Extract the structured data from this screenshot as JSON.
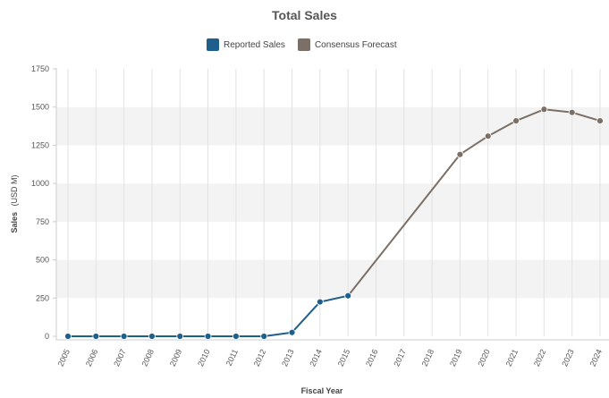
{
  "chart_data": {
    "type": "line",
    "title": "Total Sales",
    "xlabel": "Fiscal Year",
    "ylabel_main": "Sales",
    "ylabel_unit": "(USD M)",
    "x": [
      "2005",
      "2006",
      "2007",
      "2008",
      "2009",
      "2010",
      "2011",
      "2012",
      "2013",
      "2014",
      "2015",
      "2016",
      "2017",
      "2018",
      "2019",
      "2020",
      "2021",
      "2022",
      "2023",
      "2024"
    ],
    "ylim": [
      0,
      1750
    ],
    "yticks": [
      "0",
      "250",
      "500",
      "750",
      "1000",
      "1250",
      "1500",
      "1750"
    ],
    "grid": true,
    "legend_position": "top-center",
    "series": [
      {
        "name": "Reported Sales",
        "color": "#1f5f8b",
        "points": [
          {
            "x": "2005",
            "y": 0
          },
          {
            "x": "2006",
            "y": 0
          },
          {
            "x": "2007",
            "y": 0
          },
          {
            "x": "2008",
            "y": 0
          },
          {
            "x": "2009",
            "y": 0
          },
          {
            "x": "2010",
            "y": 0
          },
          {
            "x": "2011",
            "y": 0
          },
          {
            "x": "2012",
            "y": 0
          },
          {
            "x": "2013",
            "y": 25
          },
          {
            "x": "2014",
            "y": 225
          },
          {
            "x": "2015",
            "y": 265
          }
        ]
      },
      {
        "name": "Consensus Forecast",
        "color": "#7b6f66",
        "points": [
          {
            "x": "2015",
            "y": 265
          },
          {
            "x": "2019",
            "y": 1190
          },
          {
            "x": "2020",
            "y": 1310
          },
          {
            "x": "2021",
            "y": 1410
          },
          {
            "x": "2022",
            "y": 1485
          },
          {
            "x": "2023",
            "y": 1465
          },
          {
            "x": "2024",
            "y": 1410
          }
        ],
        "markers": [
          "2019",
          "2020",
          "2021",
          "2022",
          "2023",
          "2024"
        ]
      }
    ]
  },
  "colors": {
    "band_light": "#f3f3f3",
    "band_white": "#ffffff",
    "grid_line": "#e2e2e2",
    "axis_line": "#cccccc"
  }
}
